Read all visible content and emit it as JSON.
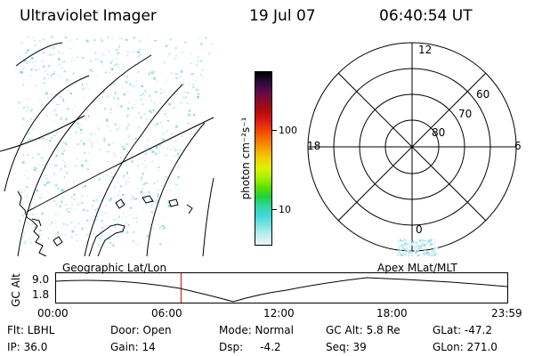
{
  "header": {
    "title": "Ultraviolet Imager",
    "date": "19 Jul 07",
    "time": "06:40:54 UT"
  },
  "colorbar": {
    "label": "photon cm⁻²s⁻¹",
    "ticks": [
      "100",
      "10"
    ],
    "colors": [
      "#000000",
      "#2a0a3a",
      "#5a0a4a",
      "#8a0a2a",
      "#b00a0a",
      "#d81818",
      "#f04008",
      "#f87000",
      "#f8a000",
      "#f0d000",
      "#e0f000",
      "#a8f000",
      "#60e000",
      "#20d040",
      "#30d8a0",
      "#40d8d8",
      "#80e4e4",
      "#c0eef0",
      "#e8f6f8"
    ]
  },
  "polar_plot": {
    "labels": {
      "top": "12",
      "left": "18",
      "right": "6",
      "bottom": "0"
    },
    "rings": [
      "60",
      "70",
      "80"
    ]
  },
  "timeline": {
    "ylabel": "GC Alt",
    "ytick_high": "9.0",
    "ytick_low": "1.8",
    "left_label": "Geographic Lat/Lon",
    "right_label": "Apex MLat/MLT",
    "xticks": [
      "00:00",
      "06:00",
      "12:00",
      "18:00",
      "23:59"
    ],
    "marker_hours": 6.68,
    "marker_color": "#d00000"
  },
  "info": {
    "col1": [
      "Flt: LBHL",
      "IP: 36.0"
    ],
    "col2": [
      "Door: Open",
      "Gain: 14"
    ],
    "col3": [
      "Mode: Normal",
      "Dsp:     -4.2"
    ],
    "col4": [
      "GC Alt: 5.8 Re",
      "Seq: 39"
    ],
    "col5": [
      "GLat: -47.2",
      "GLon: 271.0"
    ]
  }
}
